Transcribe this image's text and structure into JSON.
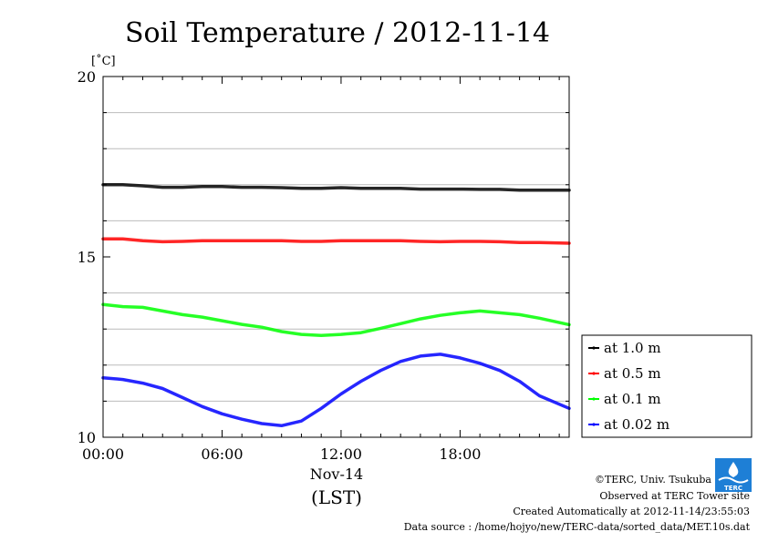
{
  "chart_data": {
    "type": "line",
    "title": "Soil Temperature / 2012-11-14",
    "ylabel_unit": "[˚C]",
    "ylim": [
      10,
      20
    ],
    "yticks": [
      10,
      15,
      20
    ],
    "ygrid": [
      11,
      12,
      13,
      14,
      16,
      17,
      18,
      19
    ],
    "xlim": [
      0,
      23.5
    ],
    "xticks": [
      {
        "x": 0,
        "label": "00:00"
      },
      {
        "x": 6,
        "label": "06:00"
      },
      {
        "x": 12,
        "label": "12:00"
      },
      {
        "x": 18,
        "label": "18:00"
      }
    ],
    "x_sublabel": "Nov-14",
    "xlabel": "(LST)",
    "grid": true,
    "legend_position": "right",
    "series": [
      {
        "name": "at 1.0 m",
        "color": "#000000",
        "x": [
          0,
          1,
          2,
          3,
          4,
          5,
          6,
          7,
          8,
          9,
          10,
          11,
          12,
          13,
          14,
          15,
          16,
          17,
          18,
          19,
          20,
          21,
          22,
          23.5
        ],
        "y": [
          17.0,
          17.0,
          16.97,
          16.93,
          16.93,
          16.95,
          16.95,
          16.93,
          16.93,
          16.92,
          16.9,
          16.9,
          16.92,
          16.9,
          16.9,
          16.9,
          16.88,
          16.88,
          16.88,
          16.87,
          16.87,
          16.85,
          16.85,
          16.85
        ]
      },
      {
        "name": "at 0.5 m",
        "color": "#ff0000",
        "x": [
          0,
          1,
          2,
          3,
          4,
          5,
          6,
          7,
          8,
          9,
          10,
          11,
          12,
          13,
          14,
          15,
          16,
          17,
          18,
          19,
          20,
          21,
          22,
          23.5
        ],
        "y": [
          15.5,
          15.5,
          15.45,
          15.42,
          15.43,
          15.45,
          15.45,
          15.45,
          15.45,
          15.45,
          15.43,
          15.43,
          15.45,
          15.45,
          15.45,
          15.45,
          15.43,
          15.42,
          15.43,
          15.43,
          15.42,
          15.4,
          15.4,
          15.38
        ]
      },
      {
        "name": "at 0.1 m",
        "color": "#00ff00",
        "x": [
          0,
          1,
          2,
          3,
          4,
          5,
          6,
          7,
          8,
          9,
          10,
          11,
          12,
          13,
          14,
          15,
          16,
          17,
          18,
          19,
          20,
          21,
          22,
          23.5
        ],
        "y": [
          13.68,
          13.62,
          13.6,
          13.5,
          13.4,
          13.33,
          13.23,
          13.13,
          13.05,
          12.93,
          12.85,
          12.82,
          12.85,
          12.9,
          13.02,
          13.15,
          13.28,
          13.38,
          13.45,
          13.5,
          13.45,
          13.4,
          13.3,
          13.12
        ]
      },
      {
        "name": "at 0.02 m",
        "color": "#0000ff",
        "x": [
          0,
          1,
          2,
          3,
          4,
          5,
          6,
          7,
          8,
          9,
          10,
          11,
          12,
          13,
          14,
          15,
          16,
          17,
          18,
          19,
          20,
          21,
          22,
          23.5
        ],
        "y": [
          11.65,
          11.6,
          11.5,
          11.35,
          11.1,
          10.85,
          10.65,
          10.5,
          10.38,
          10.32,
          10.45,
          10.8,
          11.2,
          11.55,
          11.85,
          12.1,
          12.25,
          12.3,
          12.2,
          12.05,
          11.85,
          11.55,
          11.15,
          10.8
        ]
      }
    ]
  },
  "footer": {
    "copyright": "©TERC, Univ. Tsukuba",
    "observed": "Observed at TERC Tower site",
    "created": "Created Automatically at 2012-11-14/23:55:03",
    "source": "Data source : /home/hojyo/new/TERC-data/sorted_data/MET.10s.dat",
    "logo_text": "TERC"
  }
}
